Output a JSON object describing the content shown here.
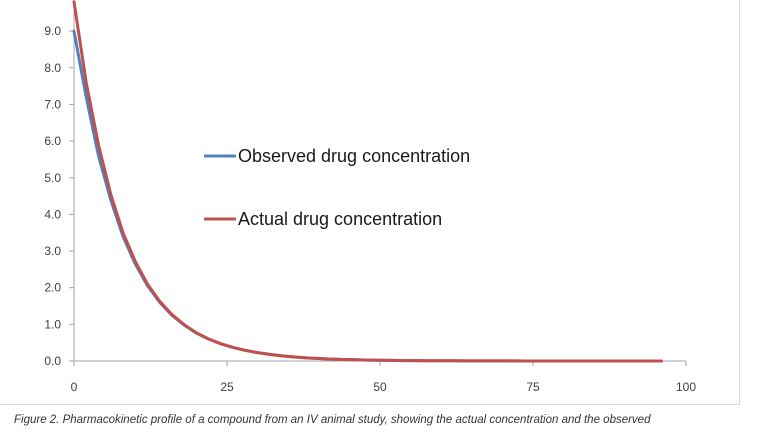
{
  "chart_data": {
    "type": "line",
    "x": [
      0,
      2,
      4,
      6,
      8,
      10,
      12,
      14,
      16,
      18,
      20,
      22,
      24,
      26,
      28,
      30,
      32,
      34,
      36,
      38,
      40,
      42,
      44,
      46,
      48,
      50,
      52,
      54,
      56,
      58,
      60,
      62,
      64,
      66,
      68,
      70,
      72,
      74,
      76,
      78,
      80,
      82,
      84,
      86,
      88,
      90,
      92,
      94,
      96
    ],
    "series": [
      {
        "name": "Observed drug concentration",
        "color": "#4f81bd",
        "values": [
          9.0,
          7.2,
          5.6,
          4.4,
          3.4,
          2.65,
          2.06,
          1.6,
          1.25,
          0.98,
          0.76,
          0.6,
          0.47,
          0.37,
          0.29,
          0.23,
          0.18,
          0.14,
          0.11,
          0.085,
          0.067,
          0.052,
          0.041,
          0.032,
          0.025,
          0.02,
          0.016,
          0.012,
          0.01,
          0.008,
          0.006,
          0.005,
          0.004,
          0.003,
          0.002,
          0.002,
          0.002,
          0.001,
          0.001,
          0.001,
          0.001,
          0.0,
          0.0,
          0.0,
          0.0,
          0.0,
          0.0,
          0.0,
          0.0
        ]
      },
      {
        "name": "Actual drug concentration",
        "color": "#c0504d",
        "values": [
          9.8,
          7.6,
          5.9,
          4.55,
          3.5,
          2.72,
          2.1,
          1.63,
          1.27,
          0.99,
          0.77,
          0.6,
          0.47,
          0.37,
          0.29,
          0.23,
          0.18,
          0.14,
          0.11,
          0.085,
          0.067,
          0.052,
          0.041,
          0.032,
          0.025,
          0.02,
          0.016,
          0.012,
          0.01,
          0.008,
          0.006,
          0.005,
          0.004,
          0.003,
          0.002,
          0.002,
          0.002,
          0.001,
          0.001,
          0.001,
          0.001,
          0.0,
          0.0,
          0.0,
          0.0,
          0.0,
          0.0,
          0.0,
          0.0
        ]
      }
    ],
    "xlim": [
      0,
      100
    ],
    "ylim": [
      0,
      10
    ],
    "xticks": [
      "0",
      "25",
      "50",
      "75",
      "100"
    ],
    "yticks": [
      "0.0",
      "1.0",
      "2.0",
      "3.0",
      "4.0",
      "5.0",
      "6.0",
      "7.0",
      "8.0",
      "9.0"
    ],
    "grid": false,
    "legend_position": "center"
  },
  "caption": "Figure 2. Pharmacokinetic profile of a compound from an IV animal study, showing the actual concentration and the observed"
}
